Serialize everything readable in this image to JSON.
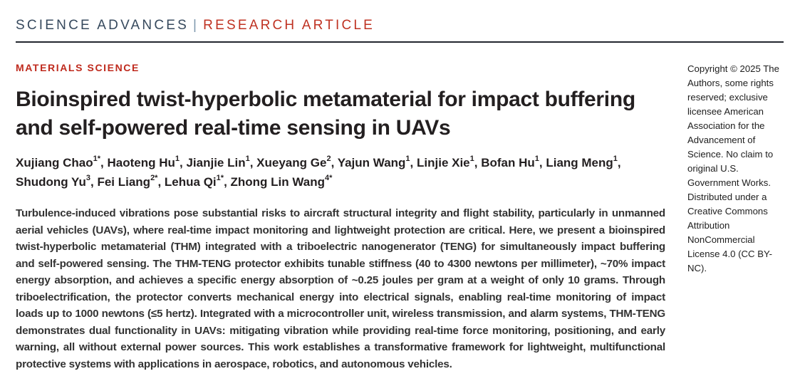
{
  "header": {
    "journal": "SCIENCE ADVANCES",
    "separator": "|",
    "article_type": "RESEARCH ARTICLE"
  },
  "article": {
    "section_label": "MATERIALS SCIENCE",
    "title": "Bioinspired twist-hyperbolic metamaterial for impact buffering and self-powered real-time sensing in UAVs",
    "authors": [
      {
        "name": "Xujiang Chao",
        "sup": "1*"
      },
      {
        "name": "Haoteng Hu",
        "sup": "1"
      },
      {
        "name": "Jianjie Lin",
        "sup": "1"
      },
      {
        "name": "Xueyang Ge",
        "sup": "2"
      },
      {
        "name": "Yajun Wang",
        "sup": "1"
      },
      {
        "name": "Linjie Xie",
        "sup": "1"
      },
      {
        "name": "Bofan Hu",
        "sup": "1"
      },
      {
        "name": "Liang Meng",
        "sup": "1"
      },
      {
        "name": "Shudong Yu",
        "sup": "3"
      },
      {
        "name": "Fei Liang",
        "sup": "2*"
      },
      {
        "name": "Lehua Qi",
        "sup": "1*"
      },
      {
        "name": "Zhong Lin Wang",
        "sup": "4*"
      }
    ],
    "abstract": "Turbulence-induced vibrations pose substantial risks to aircraft structural integrity and flight stability, particularly in unmanned aerial vehicles (UAVs), where real-time impact monitoring and lightweight protection are critical. Here, we present a bioinspired twist-hyperbolic metamaterial (THM) integrated with a triboelectric nanogenerator (TENG) for simultaneously impact buffering and self-powered sensing. The THM-TENG protector exhibits tunable stiffness (40 to 4300 newtons per millimeter), ~70% impact energy absorption, and achieves a specific energy absorption of ~0.25 joules per gram at a weight of only 10 grams. Through triboelectrification, the protector converts mechanical energy into electrical signals, enabling real-time monitoring of impact loads up to 1000 newtons (≤5 hertz). Integrated with a microcontroller unit, wireless transmission, and alarm systems, THM-TENG demonstrates dual functionality in UAVs: mitigating vibration while providing real-time force monitoring, positioning, and early warning, all without external power sources. This work establishes a transformative framework for lightweight, multifunctional protective systems with applications in aerospace, robotics, and autonomous vehicles."
  },
  "copyright": {
    "notice": "Copyright © 2025 The Authors, some rights reserved; exclusive licensee American Association for the Advancement of Science. No claim to original U.S. Government Works. Distributed under a Creative Commons Attribution NonCommercial License 4.0 (CC BY-NC)."
  },
  "colors": {
    "accent_red": "#bf3222",
    "header_navy": "#36495d",
    "text_dark": "#231f20",
    "rule_dark": "#23272f"
  }
}
